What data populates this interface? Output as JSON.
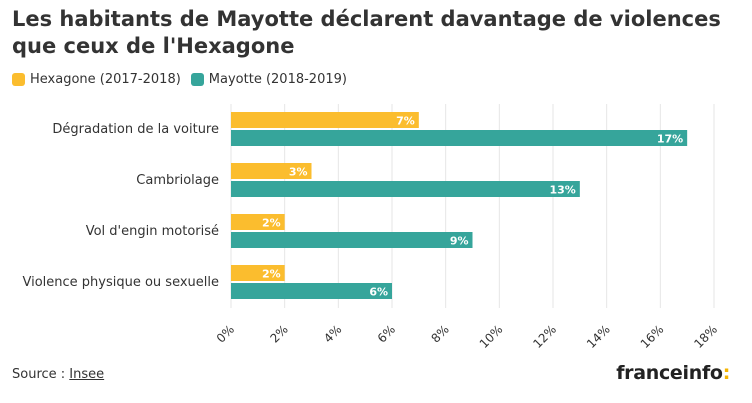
{
  "header": {
    "title": "Les habitants de Mayotte déclarent davantage de violences que ceux de l'Hexagone"
  },
  "legend": [
    {
      "label": "Hexagone (2017-2018)",
      "color": "#fbbd2e"
    },
    {
      "label": "Mayotte (2018-2019)",
      "color": "#36a59b"
    }
  ],
  "chart_data": {
    "type": "bar",
    "orientation": "horizontal",
    "categories": [
      "Dégradation de la voiture",
      "Cambriolage",
      "Vol d'engin motorisé",
      "Violence physique ou sexuelle"
    ],
    "series": [
      {
        "name": "Hexagone (2017-2018)",
        "values": [
          7,
          3,
          2,
          2
        ],
        "labels": [
          "7%",
          "3%",
          "2%",
          "2%"
        ],
        "color": "#fbbd2e"
      },
      {
        "name": "Mayotte (2018-2019)",
        "values": [
          17,
          13,
          9,
          6
        ],
        "labels": [
          "17%",
          "13%",
          "9%",
          "6%"
        ],
        "color": "#36a59b"
      }
    ],
    "xlim": [
      0,
      18
    ],
    "xticks": [
      0,
      2,
      4,
      6,
      8,
      10,
      12,
      14,
      16,
      18
    ],
    "xtick_labels": [
      "0%",
      "2%",
      "4%",
      "6%",
      "8%",
      "10%",
      "12%",
      "14%",
      "16%",
      "18%"
    ],
    "grid": true
  },
  "footer": {
    "source_prefix": "Source : ",
    "source_link": "Insee",
    "logo_text": "franceinfo",
    "logo_mark": ":"
  }
}
